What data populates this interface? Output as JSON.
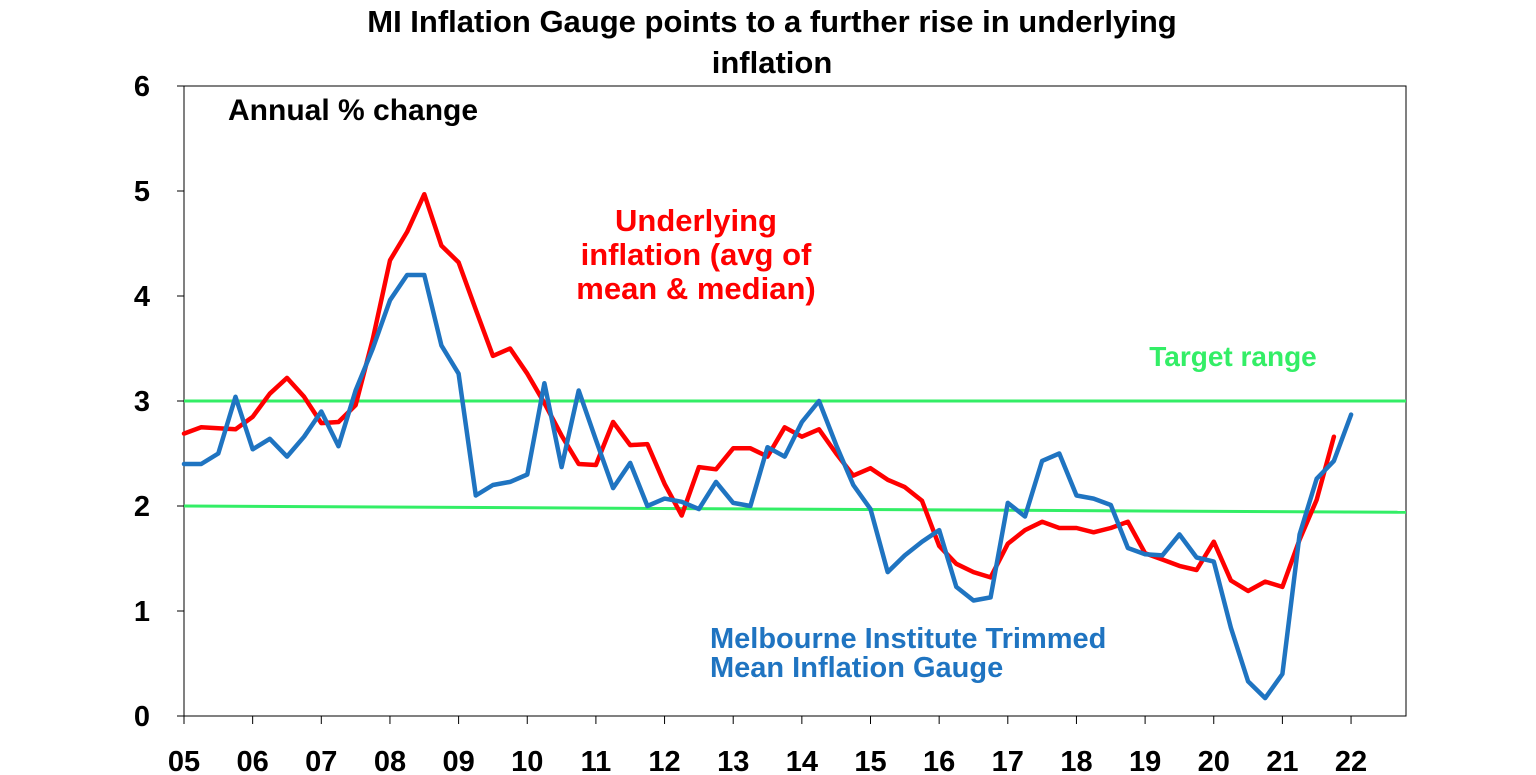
{
  "chart_data": {
    "type": "line",
    "title_lines": [
      "MI Inflation Gauge points to a further rise in underlying",
      "inflation"
    ],
    "annotation": "Annual % change",
    "ylim": [
      0,
      6
    ],
    "yticks": [
      "0",
      "1",
      "2",
      "3",
      "4",
      "5",
      "6"
    ],
    "xlim": [
      2005,
      2022.8
    ],
    "xticks": [
      "05",
      "06",
      "07",
      "08",
      "09",
      "10",
      "11",
      "12",
      "13",
      "14",
      "15",
      "16",
      "17",
      "18",
      "19",
      "20",
      "21",
      "22"
    ],
    "grid": false,
    "target_range": {
      "label": "Target range",
      "lower": 2,
      "upper": 3,
      "color": "#33ee66"
    },
    "series": [
      {
        "name": "Underlying inflation (avg of mean & median)",
        "label_lines": [
          "Underlying",
          "inflation (avg of",
          "mean & median)"
        ],
        "color": "#ff0000",
        "start": 2005,
        "step": 0.25,
        "values": [
          2.69,
          2.75,
          2.74,
          2.73,
          2.85,
          3.07,
          3.22,
          3.04,
          2.79,
          2.8,
          2.96,
          3.59,
          4.34,
          4.61,
          4.97,
          4.48,
          4.32,
          3.87,
          3.43,
          3.5,
          3.26,
          2.98,
          2.67,
          2.4,
          2.39,
          2.8,
          2.58,
          2.59,
          2.21,
          1.91,
          2.37,
          2.35,
          2.55,
          2.55,
          2.47,
          2.75,
          2.66,
          2.73,
          2.5,
          2.29,
          2.36,
          2.25,
          2.18,
          2.05,
          1.62,
          1.45,
          1.37,
          1.32,
          1.64,
          1.77,
          1.85,
          1.79,
          1.79,
          1.75,
          1.79,
          1.85,
          1.55,
          1.49,
          1.43,
          1.39,
          1.66,
          1.29,
          1.19,
          1.28,
          1.23,
          1.68,
          2.06,
          2.66
        ]
      },
      {
        "name": "Melbourne Institute Trimmed Mean Inflation Gauge",
        "label_lines": [
          "Melbourne Institute Trimmed",
          "Mean Inflation Gauge"
        ],
        "color": "#1f74c1",
        "start": 2005,
        "step": 0.25,
        "values": [
          2.4,
          2.4,
          2.5,
          3.04,
          2.54,
          2.64,
          2.47,
          2.66,
          2.9,
          2.57,
          3.1,
          3.5,
          3.96,
          4.2,
          4.2,
          3.53,
          3.26,
          2.1,
          2.2,
          2.23,
          2.3,
          3.17,
          2.37,
          3.1,
          2.63,
          2.17,
          2.41,
          2.0,
          2.07,
          2.04,
          1.97,
          2.23,
          2.03,
          2.0,
          2.56,
          2.47,
          2.8,
          3.0,
          2.58,
          2.2,
          1.97,
          1.37,
          1.53,
          1.66,
          1.77,
          1.23,
          1.1,
          1.13,
          2.03,
          1.9,
          2.43,
          2.5,
          2.1,
          2.07,
          2.01,
          1.6,
          1.54,
          1.53,
          1.73,
          1.51,
          1.47,
          0.84,
          0.33,
          0.17,
          0.4,
          1.73,
          2.26,
          2.43,
          2.87
        ]
      }
    ]
  }
}
